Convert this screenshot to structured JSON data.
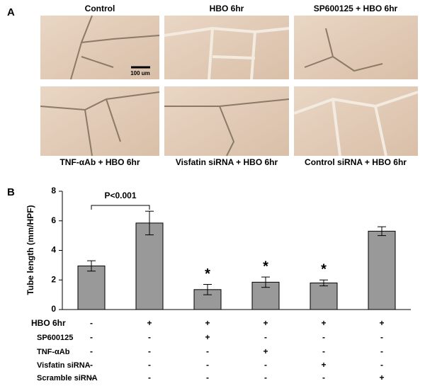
{
  "panel_a": {
    "label": "A",
    "captions": [
      "Control",
      "HBO 6hr",
      "SP600125 + HBO 6hr",
      "TNF-αAb + HBO 6hr",
      "Visfatin siRNA + HBO 6hr",
      "Control siRNA + HBO 6hr"
    ],
    "scale_bar": "100 um"
  },
  "chart_data": {
    "type": "bar",
    "panel_label": "B",
    "ylabel": "Tube length (mm/HPF)",
    "values": [
      2.95,
      5.85,
      1.35,
      1.85,
      1.8,
      5.3
    ],
    "errors": [
      0.35,
      0.8,
      0.35,
      0.35,
      0.2,
      0.3
    ],
    "color": "#999999",
    "ylim": [
      0,
      8
    ],
    "yticks": [
      0,
      2,
      4,
      6,
      8
    ],
    "significance": "P<0.001",
    "star_labels": [
      null,
      null,
      "*",
      "*",
      "*",
      null
    ],
    "conditions": [
      {
        "name": "HBO 6hr",
        "marks": [
          "-",
          "+",
          "+",
          "+",
          "+",
          "+"
        ]
      },
      {
        "name": "SP600125",
        "marks": [
          "-",
          "-",
          "+",
          "-",
          "-",
          "-"
        ]
      },
      {
        "name": "TNF-αAb",
        "marks": [
          "-",
          "-",
          "-",
          "+",
          "-",
          "-"
        ]
      },
      {
        "name": "Visfatin siRNA",
        "marks": [
          "-",
          "-",
          "-",
          "-",
          "+",
          "-"
        ]
      },
      {
        "name": "Scramble siRNA",
        "marks": [
          "-",
          "-",
          "-",
          "-",
          "-",
          "+"
        ]
      }
    ]
  }
}
